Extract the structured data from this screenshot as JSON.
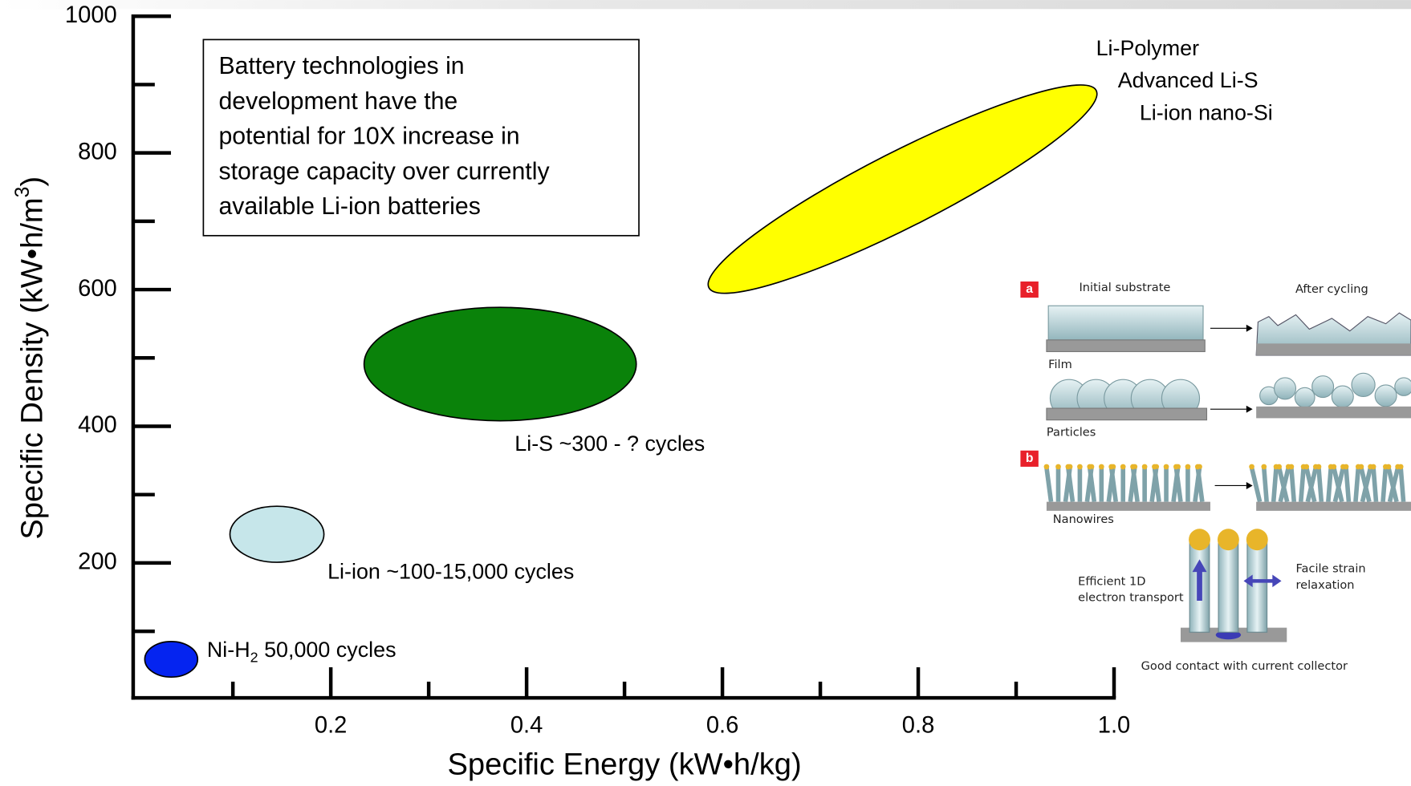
{
  "chart_data": {
    "type": "ellipse",
    "x_label": "Specific Energy (kW•h/kg)",
    "y_label_parts": [
      "Specific Density (kW•h/m",
      "3",
      ")"
    ],
    "xlim": [
      0,
      1.0
    ],
    "ylim": [
      0,
      1000
    ],
    "xticks": [
      0.2,
      0.4,
      0.6,
      0.8,
      {
        "value": 1.0,
        "label": "1.0"
      }
    ],
    "xminor": [
      0.1,
      0.3,
      0.5,
      0.7,
      0.9
    ],
    "yticks": [
      200,
      400,
      600,
      800,
      1000
    ],
    "yminor": [
      100,
      300,
      500,
      700,
      900
    ],
    "annotation": [
      "Battery technologies in",
      "development have the",
      "potential for 10X increase in",
      "storage capacity over currently",
      "available Li-ion batteries"
    ],
    "regions": [
      {
        "label_lines": [
          "Li-Polymer",
          "Advanced Li-S",
          "Li-ion nano-Si"
        ],
        "color": "#ffff00",
        "x": 0.784,
        "y": 747,
        "x_radius": 0.222,
        "y_radius": 55,
        "rotation": -27
      },
      {
        "label_lines": [
          "Li-S ~300 - ? cycles"
        ],
        "color": "#0a820a",
        "x": 0.373,
        "y": 491,
        "x_radius": 0.139,
        "y_radius": 83,
        "rotation": 0
      },
      {
        "label_lines": [
          "Li-ion ~100-15,000 cycles"
        ],
        "color": "#c6e6ea",
        "x": 0.145,
        "y": 242,
        "x_radius": 0.048,
        "y_radius": 41,
        "rotation": 0
      },
      {
        "label_parts": [
          "Ni-H",
          "2",
          " 50,000 cycles"
        ],
        "color": "#0524f0",
        "x": 0.037,
        "y": 59,
        "x_radius": 0.027,
        "y_radius": 26,
        "rotation": 0
      }
    ]
  },
  "inset": {
    "panel_a": "a",
    "initial": "Initial substrate",
    "after": "After cycling",
    "film": "Film",
    "particles": "Particles",
    "panel_b": "b",
    "nanowires": "Nanowires",
    "efficient": [
      "Efficient 1D",
      "electron transport"
    ],
    "facile": [
      "Facile strain",
      "relaxation"
    ],
    "contact": "Good contact with current collector"
  }
}
